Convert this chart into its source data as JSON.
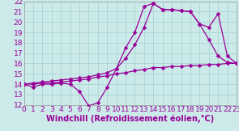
{
  "xlabel": "Windchill (Refroidissement éolien,°C)",
  "bg_color": "#cceaea",
  "line_color": "#990099",
  "grid_color": "#aad4d4",
  "xmin": 0,
  "xmax": 23,
  "ymin": 12,
  "ymax": 22,
  "line1_x": [
    0,
    1,
    2,
    3,
    4,
    5,
    6,
    7,
    8,
    9,
    10,
    11,
    12,
    13,
    14,
    15,
    16,
    17,
    18,
    19,
    20,
    21,
    22,
    23
  ],
  "line1_y": [
    14.0,
    13.7,
    14.0,
    14.0,
    14.1,
    14.0,
    13.3,
    11.9,
    12.2,
    13.7,
    15.5,
    17.5,
    19.0,
    21.5,
    21.8,
    21.2,
    21.2,
    21.1,
    21.0,
    19.8,
    18.3,
    16.7,
    16.1,
    16.0
  ],
  "line2_x": [
    0,
    1,
    2,
    3,
    4,
    5,
    6,
    7,
    8,
    9,
    10,
    11,
    12,
    13,
    14,
    15,
    16,
    17,
    18,
    19,
    20,
    21,
    22,
    23
  ],
  "line2_y": [
    14.0,
    14.0,
    14.1,
    14.1,
    14.2,
    14.3,
    14.4,
    14.5,
    14.7,
    14.8,
    15.0,
    15.1,
    15.3,
    15.4,
    15.6,
    15.6,
    15.7,
    15.7,
    15.8,
    15.8,
    15.9,
    15.9,
    16.0,
    16.0
  ],
  "line3_x": [
    0,
    1,
    2,
    3,
    4,
    5,
    6,
    7,
    8,
    9,
    10,
    11,
    12,
    13,
    14,
    15,
    16,
    17,
    18,
    19,
    20,
    21,
    22,
    23
  ],
  "line3_y": [
    14.0,
    14.1,
    14.2,
    14.3,
    14.4,
    14.5,
    14.6,
    14.7,
    14.9,
    15.1,
    15.5,
    16.5,
    17.8,
    19.5,
    21.8,
    21.2,
    21.2,
    21.1,
    21.0,
    19.8,
    19.5,
    20.8,
    16.7,
    16.0
  ],
  "xlabel_fontsize": 7.0,
  "tick_fontsize": 6.5,
  "marker_size": 2.5,
  "line_width": 0.9
}
